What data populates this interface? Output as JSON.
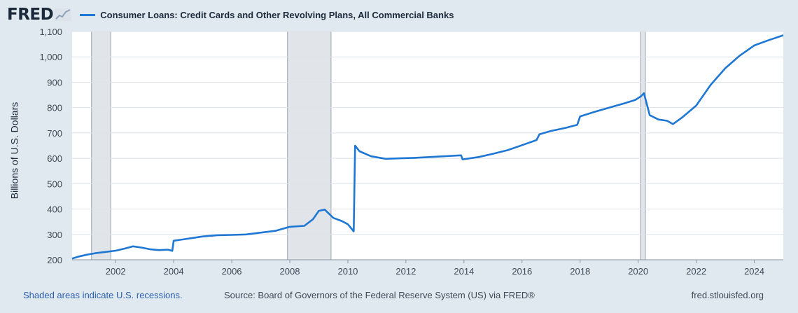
{
  "brand": {
    "logo_text": "FRED",
    "logo_icon": "line-chart-icon"
  },
  "colors": {
    "series": "#1f77d4",
    "recession": "#e1e5ea",
    "grid": "#dfe3e8",
    "plot_bg": "#ffffff",
    "page_bg": "#e1e9f0"
  },
  "footer": {
    "recession_note": "Shaded areas indicate U.S. recessions.",
    "source": "Source: Board of Governors of the Federal Reserve System (US) via FRED®",
    "url": "fred.stlouisfed.org"
  },
  "chart_data": {
    "type": "line",
    "title": "Consumer Loans: Credit Cards and Other Revolving Plans, All Commercial Banks",
    "xlabel": "",
    "ylabel": "Billions of U.S. Dollars",
    "xlim": [
      2000.5,
      2025.0
    ],
    "ylim": [
      200,
      1100
    ],
    "y_ticks": [
      {
        "value": 200,
        "label": "200"
      },
      {
        "value": 300,
        "label": "300"
      },
      {
        "value": 400,
        "label": "400"
      },
      {
        "value": 500,
        "label": "500"
      },
      {
        "value": 600,
        "label": "600"
      },
      {
        "value": 700,
        "label": "700"
      },
      {
        "value": 800,
        "label": "800"
      },
      {
        "value": 900,
        "label": "900"
      },
      {
        "value": 1000,
        "label": "1,000"
      },
      {
        "value": 1100,
        "label": "1,100"
      }
    ],
    "x_ticks": [
      {
        "value": 2002,
        "label": "2002"
      },
      {
        "value": 2004,
        "label": "2004"
      },
      {
        "value": 2006,
        "label": "2006"
      },
      {
        "value": 2008,
        "label": "2008"
      },
      {
        "value": 2010,
        "label": "2010"
      },
      {
        "value": 2012,
        "label": "2012"
      },
      {
        "value": 2014,
        "label": "2014"
      },
      {
        "value": 2016,
        "label": "2016"
      },
      {
        "value": 2018,
        "label": "2018"
      },
      {
        "value": 2020,
        "label": "2020"
      },
      {
        "value": 2022,
        "label": "2022"
      },
      {
        "value": 2024,
        "label": "2024"
      }
    ],
    "grid": true,
    "recessions": [
      [
        2001.17,
        2001.83
      ],
      [
        2007.92,
        2009.42
      ],
      [
        2020.08,
        2020.25
      ]
    ],
    "series": [
      {
        "name": "Consumer Loans: Credit Cards and Other Revolving Plans, All Commercial Banks",
        "x": [
          2000.5,
          2000.7,
          2001.0,
          2001.3,
          2001.6,
          2002.0,
          2002.3,
          2002.6,
          2002.9,
          2003.2,
          2003.5,
          2003.8,
          2003.95,
          2004.0,
          2004.3,
          2004.6,
          2005.0,
          2005.5,
          2006.0,
          2006.5,
          2007.0,
          2007.5,
          2008.0,
          2008.5,
          2008.8,
          2009.0,
          2009.2,
          2009.5,
          2009.8,
          2010.0,
          2010.2,
          2010.25,
          2010.4,
          2010.8,
          2011.3,
          2011.8,
          2012.3,
          2012.8,
          2013.3,
          2013.9,
          2013.95,
          2014.5,
          2015.0,
          2015.5,
          2016.0,
          2016.5,
          2016.6,
          2017.0,
          2017.5,
          2017.9,
          2018.0,
          2018.5,
          2019.0,
          2019.5,
          2019.9,
          2020.1,
          2020.2,
          2020.4,
          2020.7,
          2021.0,
          2021.2,
          2021.5,
          2022.0,
          2022.5,
          2023.0,
          2023.5,
          2024.0,
          2024.5,
          2025.0
        ],
        "values": [
          205,
          212,
          220,
          226,
          230,
          236,
          244,
          253,
          248,
          241,
          238,
          240,
          235,
          275,
          280,
          285,
          292,
          297,
          298,
          300,
          307,
          314,
          330,
          334,
          360,
          393,
          398,
          365,
          352,
          340,
          312,
          650,
          628,
          608,
          598,
          600,
          602,
          605,
          608,
          612,
          596,
          605,
          618,
          632,
          652,
          672,
          695,
          708,
          720,
          732,
          765,
          783,
          800,
          816,
          830,
          845,
          857,
          770,
          753,
          748,
          735,
          760,
          808,
          890,
          955,
          1005,
          1045,
          1066,
          1085
        ]
      }
    ]
  }
}
